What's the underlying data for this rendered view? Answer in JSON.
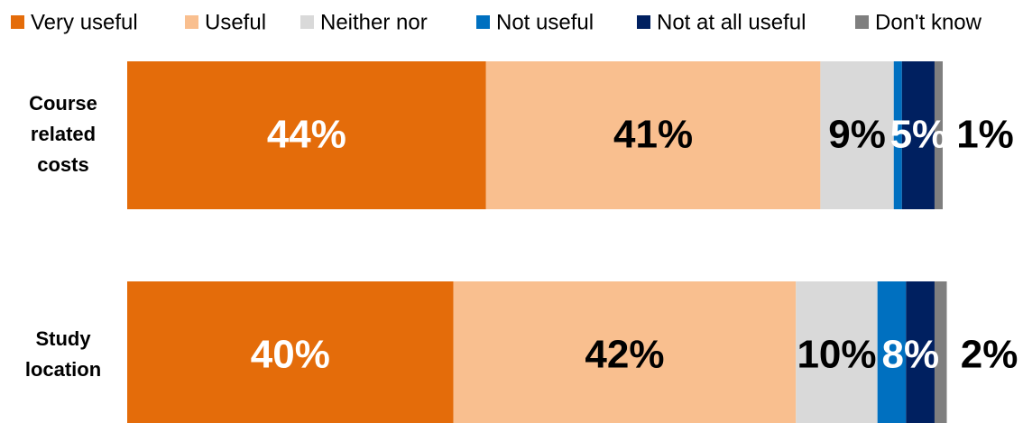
{
  "chart_data": {
    "type": "stacked-bar-horizontal",
    "categories": [
      "Course related costs",
      "Study location"
    ],
    "xlim": [
      0,
      100
    ],
    "series": [
      {
        "name": "Very useful",
        "color": "#e46c0a",
        "values": [
          44,
          40
        ]
      },
      {
        "name": "Useful",
        "color": "#f9bf8f",
        "values": [
          41,
          42
        ]
      },
      {
        "name": "Neither nor",
        "color": "#d9d9d9",
        "values": [
          9,
          10
        ]
      },
      {
        "name": "Not useful",
        "color": "#0070c0",
        "values": [
          1,
          3.5
        ]
      },
      {
        "name": "Not at all useful",
        "color": "#002060",
        "values": [
          4,
          3.5
        ]
      },
      {
        "name": "Don't know",
        "color": "#7f7f7f",
        "values": [
          1,
          1.5
        ],
        "value_labels": [
          "1%",
          "2%"
        ]
      }
    ],
    "value_label_series": {
      "Very useful": [
        "44%",
        "40%"
      ],
      "Useful": [
        "41%",
        "42%"
      ],
      "Neither nor": [
        "9%",
        "10%"
      ]
    },
    "annotations": [
      "5%",
      "8%"
    ],
    "legend": "top"
  }
}
